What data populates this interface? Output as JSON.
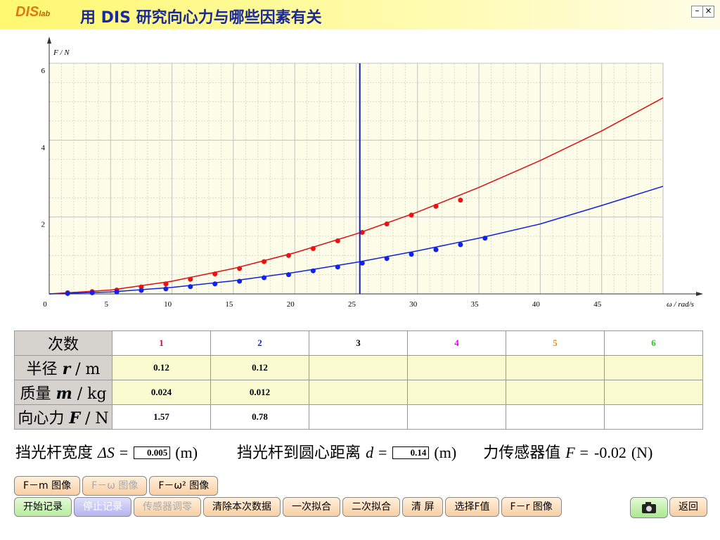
{
  "header": {
    "logo": "DIS",
    "logo_sub": "lab",
    "title": "用 DIS 研究向心力与哪些因素有关"
  },
  "chart_data": {
    "type": "scatter",
    "x_label": "ω / rad/s",
    "y_label": "F / N",
    "xlim": [
      0,
      50
    ],
    "ylim": [
      0,
      6
    ],
    "xticks": [
      0,
      5,
      10,
      15,
      20,
      25,
      30,
      35,
      40,
      45
    ],
    "yticks": [
      2,
      4,
      6
    ],
    "grid": true,
    "minor_grid": true,
    "series": [
      {
        "color": "#ee1111",
        "x": [
          1.5,
          3.5,
          5.5,
          7.5,
          9.5,
          11.5,
          13.5,
          15.5,
          17.5,
          19.5,
          21.5,
          23.5,
          25.5,
          27.5,
          29.5,
          31.5,
          33.5
        ],
        "values": [
          0.03,
          0.06,
          0.1,
          0.18,
          0.26,
          0.38,
          0.52,
          0.66,
          0.84,
          1.0,
          1.18,
          1.38,
          1.6,
          1.82,
          2.05,
          2.28,
          2.44
        ]
      },
      {
        "color": "#1122ee",
        "x": [
          1.5,
          3.5,
          5.5,
          7.5,
          9.5,
          11.5,
          13.5,
          15.5,
          17.5,
          19.5,
          21.5,
          23.5,
          25.5,
          27.5,
          29.5,
          31.5,
          33.5,
          35.5
        ],
        "values": [
          0.01,
          0.03,
          0.05,
          0.09,
          0.13,
          0.19,
          0.26,
          0.33,
          0.42,
          0.5,
          0.6,
          0.7,
          0.8,
          0.92,
          1.03,
          1.15,
          1.28,
          1.45
        ]
      }
    ],
    "fit_lines": [
      {
        "color": "#dd1111",
        "x": [
          0,
          5,
          10,
          15,
          20,
          25,
          30,
          35,
          40,
          45,
          50
        ],
        "values": [
          0,
          0.1,
          0.33,
          0.66,
          1.07,
          1.56,
          2.13,
          2.77,
          3.47,
          4.24,
          5.1
        ]
      },
      {
        "color": "#1122dd",
        "x": [
          0,
          5,
          10,
          15,
          20,
          25,
          30,
          35,
          40,
          45,
          50
        ],
        "values": [
          0,
          0.05,
          0.17,
          0.34,
          0.56,
          0.82,
          1.12,
          1.45,
          1.82,
          2.3,
          2.8
        ]
      }
    ],
    "cursor_x": 25.3,
    "cursor_color": "#1122cc"
  },
  "table": {
    "header_label": "次数",
    "columns": [
      "1",
      "2",
      "3",
      "4",
      "5",
      "6"
    ],
    "column_colors": [
      "#dd0044",
      "#1122cc",
      "#000000",
      "#ee00ee",
      "#ff8800",
      "#22cc22"
    ],
    "rows": [
      {
        "name": "半径",
        "symbol": "r",
        "unit": "/ m",
        "values": [
          0.12,
          0.12
        ]
      },
      {
        "name": "质量",
        "symbol": "m",
        "unit": "/ kg",
        "values": [
          0.024,
          0.012
        ]
      },
      {
        "name": "向心力",
        "symbol": "F",
        "unit": "/ N",
        "values": [
          1.57,
          0.78
        ]
      }
    ]
  },
  "params": [
    {
      "label": "挡光杆宽度",
      "symbol": "ΔS =",
      "value": 0.005,
      "unit": "(m)",
      "boxed": true
    },
    {
      "label": "挡光杆到圆心距离",
      "symbol": "d =",
      "value": 0.14,
      "unit": "(m)",
      "boxed": true
    },
    {
      "label": "力传感器值",
      "symbol": "F =",
      "value": -0.02,
      "unit": "(N)",
      "boxed": false
    }
  ],
  "buttons_row1": [
    {
      "label": "F－m 图像",
      "state": "normal"
    },
    {
      "label": "F－ω 图像",
      "state": "disabled"
    },
    {
      "label": "F－ω² 图像",
      "state": "normal"
    }
  ],
  "buttons_row2": [
    {
      "label": "开始记录",
      "state": "start"
    },
    {
      "label": "停止记录",
      "state": "stop"
    },
    {
      "label": "传感器调零",
      "state": "disabled"
    },
    {
      "label": "清除本次数据",
      "state": "normal"
    },
    {
      "label": "一次拟合",
      "state": "normal"
    },
    {
      "label": "二次拟合",
      "state": "normal"
    },
    {
      "label": "清 屏",
      "state": "normal"
    },
    {
      "label": "选择F值",
      "state": "normal"
    },
    {
      "label": "F－r 图像",
      "state": "normal"
    }
  ],
  "back_button": "返回"
}
